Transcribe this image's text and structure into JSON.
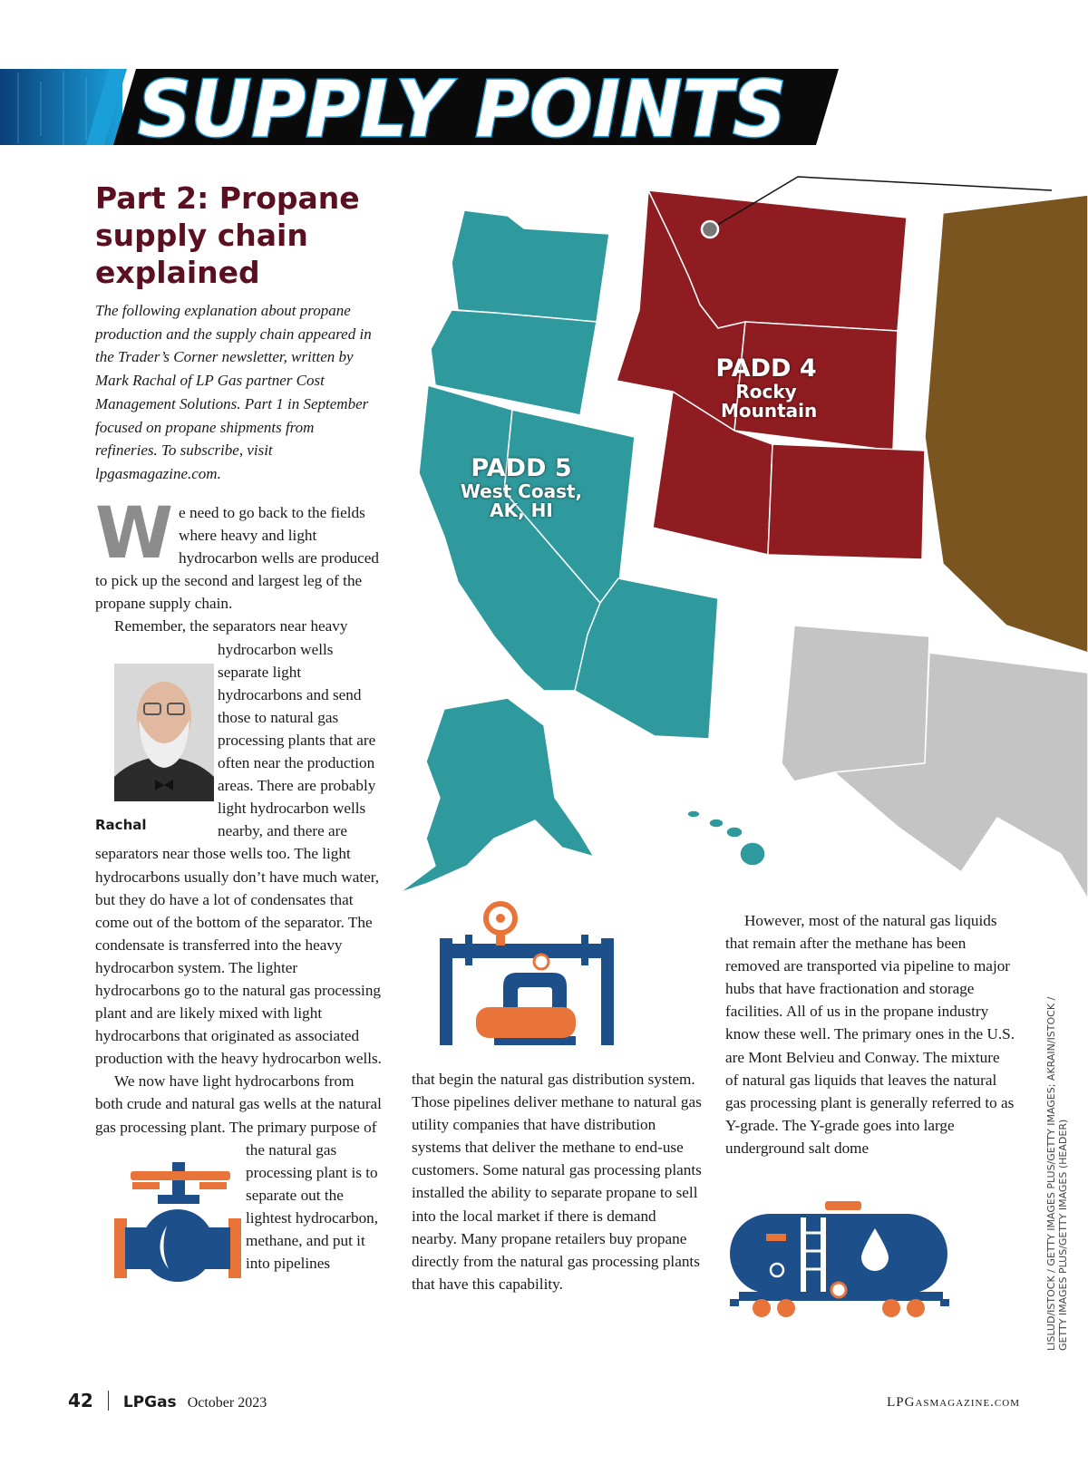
{
  "header": {
    "title": "SUPPLY POINTS"
  },
  "article": {
    "headline": "Part 2: Propane supply chain explained",
    "intro": "The following explanation about propane production and the supply chain appeared in the Trader’s Corner newsletter, written by Mark Rachal of LP Gas partner Cost Management Solutions. Part 1 in September focused on propane shipments from refineries. To subscribe, visit lpgasmagazine.com.",
    "drop_cap": "W",
    "columns": [
      [
        "e need to go back to the fields where heavy and light hydrocarbon wells are produced to pick up the second and largest leg of the propane supply chain.",
        "Remember, the separators near heavy hydrocarbon wells separate light hydrocarbons and send those to natural gas processing plants that are often near the production areas. There are probably light hydrocarbon wells nearby, and there are separators near those wells too. The light hydrocarbons usually don’t have much water, but they do have a lot of condensates that come out of the bottom of the separator. The condensate is transferred into the heavy hydrocarbon system. The lighter hydrocarbons go to the natural gas processing plant and are likely mixed with light hydrocarbons that originated as associated production with the heavy hydrocarbon wells.",
        "We now have light hydrocarbons from both crude and natural gas wells at the natural gas processing plant. The primary purpose of the natural gas processing plant is to separate out the lightest hydrocarbon, methane, and put it into pipelines"
      ],
      [
        "that begin the natural gas distribution system. Those pipelines deliver methane to natural gas utility companies that have distribution systems that deliver the methane to end-use customers. Some natural gas processing plants installed the ability to separate propane to sell into the local market if there is demand nearby. Many propane retailers buy propane directly from the natural gas processing plants that have this capability."
      ],
      [
        "However, most of the natural gas liquids that remain after the methane has been removed are transported via pipeline to major hubs that have fractionation and storage facilities. All of us in the propane industry know these well. The primary ones in the U.S. are Mont Belvieu and Conway. The mixture of natural gas liquids that leaves the natural gas processing plant is generally referred to as Y-grade. The Y-grade goes into large underground salt dome"
      ]
    ],
    "photo_caption": "Rachal"
  },
  "map": {
    "labels": [
      {
        "title": "PADD 4",
        "subtitle": "Rocky Mountain"
      },
      {
        "title": "PADD 5",
        "subtitle": "West Coast, AK, HI"
      }
    ]
  },
  "credit": "LISLUD/ISTOCK / GETTY IMAGES PLUS/GETTY IMAGES; AKRAIN/ISTOCK / GETTY IMAGES PLUS/GETTY IMAGES (HEADER)",
  "footer": {
    "page_number": "42",
    "magazine": "LPGas",
    "date": "October 2023",
    "website": "LPGasmagazine.com"
  }
}
